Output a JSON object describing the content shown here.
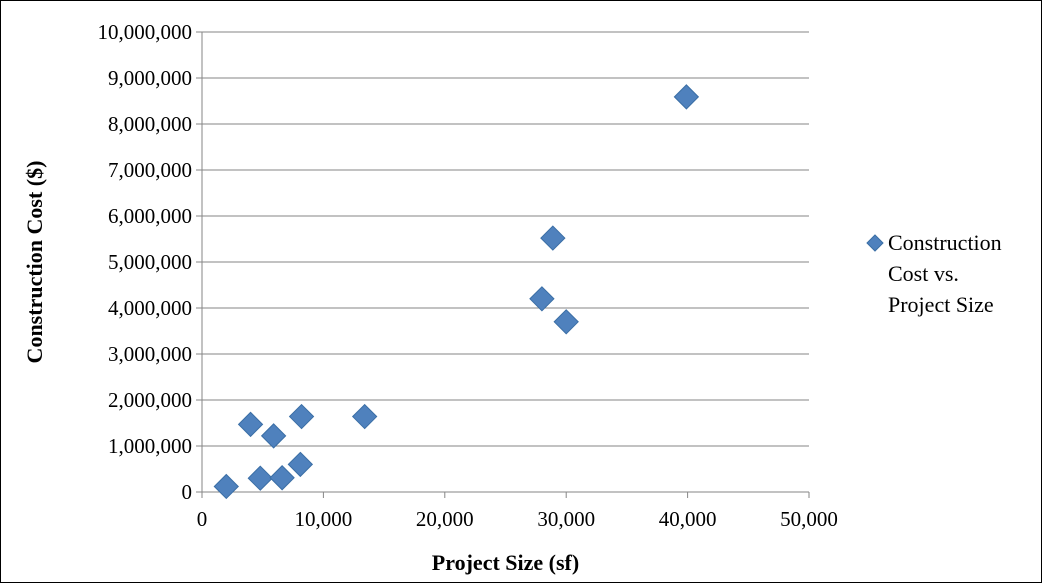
{
  "chart_data": {
    "type": "scatter",
    "title": "",
    "xlabel": "Project Size (sf)",
    "ylabel": "Construction Cost ($)",
    "xlim": [
      0,
      50000
    ],
    "ylim": [
      0,
      10000000
    ],
    "x_ticks": [
      0,
      10000,
      20000,
      30000,
      40000,
      50000
    ],
    "x_tick_labels": [
      "0",
      "10,000",
      "20,000",
      "30,000",
      "40,000",
      "50,000"
    ],
    "y_ticks": [
      0,
      1000000,
      2000000,
      3000000,
      4000000,
      5000000,
      6000000,
      7000000,
      8000000,
      9000000,
      10000000
    ],
    "y_tick_labels": [
      "0",
      "1,000,000",
      "2,000,000",
      "3,000,000",
      "4,000,000",
      "5,000,000",
      "6,000,000",
      "7,000,000",
      "8,000,000",
      "9,000,000",
      "10,000,000"
    ],
    "grid": "horizontal",
    "legend_position": "right",
    "marker": "diamond",
    "colors": {
      "marker_fill": "#4F81BD",
      "marker_stroke": "#3A6EA5",
      "gridline": "#868686",
      "axis": "#868686"
    },
    "series": [
      {
        "name": "Construction Cost vs. Project Size",
        "legend_lines": [
          "Construction",
          "Cost vs.",
          "Project Size"
        ],
        "points": [
          {
            "x": 2000,
            "y": 120000
          },
          {
            "x": 4000,
            "y": 1470000
          },
          {
            "x": 4800,
            "y": 300000
          },
          {
            "x": 5900,
            "y": 1220000
          },
          {
            "x": 6600,
            "y": 310000
          },
          {
            "x": 8100,
            "y": 600000
          },
          {
            "x": 8200,
            "y": 1640000
          },
          {
            "x": 13400,
            "y": 1640000
          },
          {
            "x": 28000,
            "y": 4200000
          },
          {
            "x": 28900,
            "y": 5520000
          },
          {
            "x": 30000,
            "y": 3700000
          },
          {
            "x": 39900,
            "y": 8590000
          }
        ]
      }
    ]
  }
}
